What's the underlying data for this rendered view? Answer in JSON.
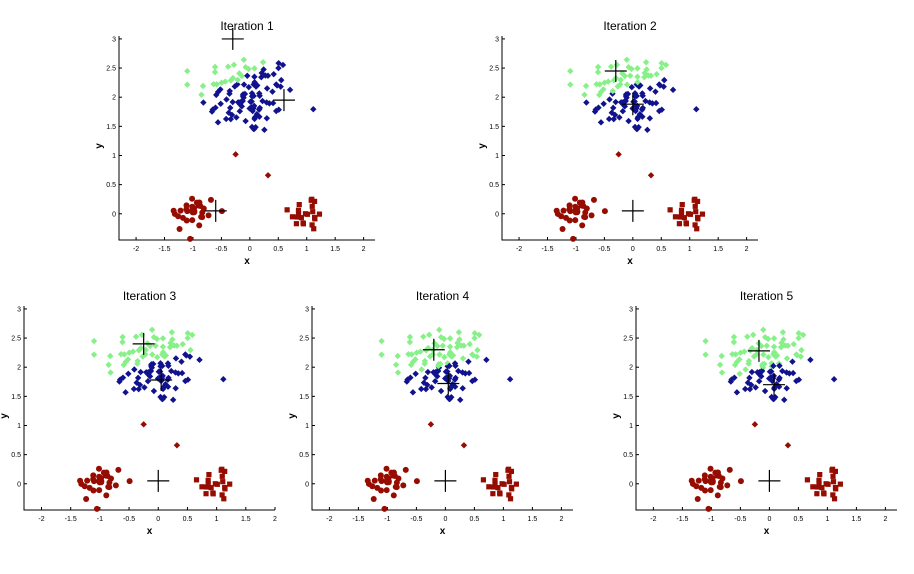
{
  "colors": {
    "cluster_light": "#88f088",
    "cluster_dark": "#10128e",
    "cluster_red": "#960c00",
    "centroid": "#000000",
    "axes": "#000000"
  },
  "chart_data": [
    {
      "type": "scatter",
      "title": "Iteration 1",
      "xlabel": "x",
      "ylabel": "y",
      "xlim": [
        -2.3,
        2.2
      ],
      "ylim": [
        -0.45,
        3.05
      ],
      "xticks": [
        "-2",
        "-1.5",
        "-1",
        "-0.5",
        "0",
        "0.5",
        "1",
        "1.5",
        "2"
      ],
      "yticks": [
        "0",
        "0.5",
        "1",
        "1.5",
        "2",
        "2.5",
        "3"
      ],
      "grid": false,
      "centroids": [
        [
          -0.3,
          3.0
        ],
        [
          0.6,
          1.95
        ],
        [
          -0.6,
          0.05
        ]
      ]
    },
    {
      "type": "scatter",
      "title": "Iteration 2",
      "xlabel": "x",
      "ylabel": "y",
      "xlim": [
        -2.3,
        2.2
      ],
      "ylim": [
        -0.45,
        3.05
      ],
      "xticks": [
        "-2",
        "-1.5",
        "-1",
        "-0.5",
        "0",
        "0.5",
        "1",
        "1.5",
        "2"
      ],
      "yticks": [
        "0",
        "0.5",
        "1",
        "1.5",
        "2",
        "2.5",
        "3"
      ],
      "grid": false,
      "centroids": [
        [
          -0.3,
          2.45
        ],
        [
          0.0,
          1.88
        ],
        [
          0.0,
          0.05
        ]
      ]
    },
    {
      "type": "scatter",
      "title": "Iteration 3",
      "xlabel": "x",
      "ylabel": "y",
      "xlim": [
        -2.3,
        2.0
      ],
      "ylim": [
        -0.45,
        3.05
      ],
      "xticks": [
        "-2",
        "-1.5",
        "-1",
        "-0.5",
        "0",
        "0.5",
        "1",
        "1.5",
        "2"
      ],
      "yticks": [
        "0",
        "0.5",
        "1",
        "1.5",
        "2",
        "2.5",
        "3"
      ],
      "grid": false,
      "centroids": [
        [
          -0.25,
          2.4
        ],
        [
          0.05,
          1.78
        ],
        [
          0.0,
          0.05
        ]
      ]
    },
    {
      "type": "scatter",
      "title": "Iteration 4",
      "xlabel": "x",
      "ylabel": "y",
      "xlim": [
        -2.3,
        2.2
      ],
      "ylim": [
        -0.45,
        3.05
      ],
      "xticks": [
        "-2",
        "-1.5",
        "-1",
        "-0.5",
        "0",
        "0.5",
        "1",
        "1.5",
        "2"
      ],
      "yticks": [
        "0",
        "0.5",
        "1",
        "1.5",
        "2",
        "2.5",
        "3"
      ],
      "grid": false,
      "centroids": [
        [
          -0.2,
          2.3
        ],
        [
          0.05,
          1.72
        ],
        [
          0.0,
          0.05
        ]
      ]
    },
    {
      "type": "scatter",
      "title": "Iteration 5",
      "xlabel": "x",
      "ylabel": "y",
      "xlim": [
        -2.3,
        2.2
      ],
      "ylim": [
        -0.45,
        3.05
      ],
      "xticks": [
        "-2",
        "-1.5",
        "-1",
        "-0.5",
        "0",
        "0.5",
        "1",
        "1.5",
        "2"
      ],
      "yticks": [
        "0",
        "0.5",
        "1",
        "1.5",
        "2",
        "2.5",
        "3"
      ],
      "grid": false,
      "centroids": [
        [
          -0.18,
          2.28
        ],
        [
          0.08,
          1.7
        ],
        [
          0.0,
          0.05
        ]
      ]
    }
  ]
}
